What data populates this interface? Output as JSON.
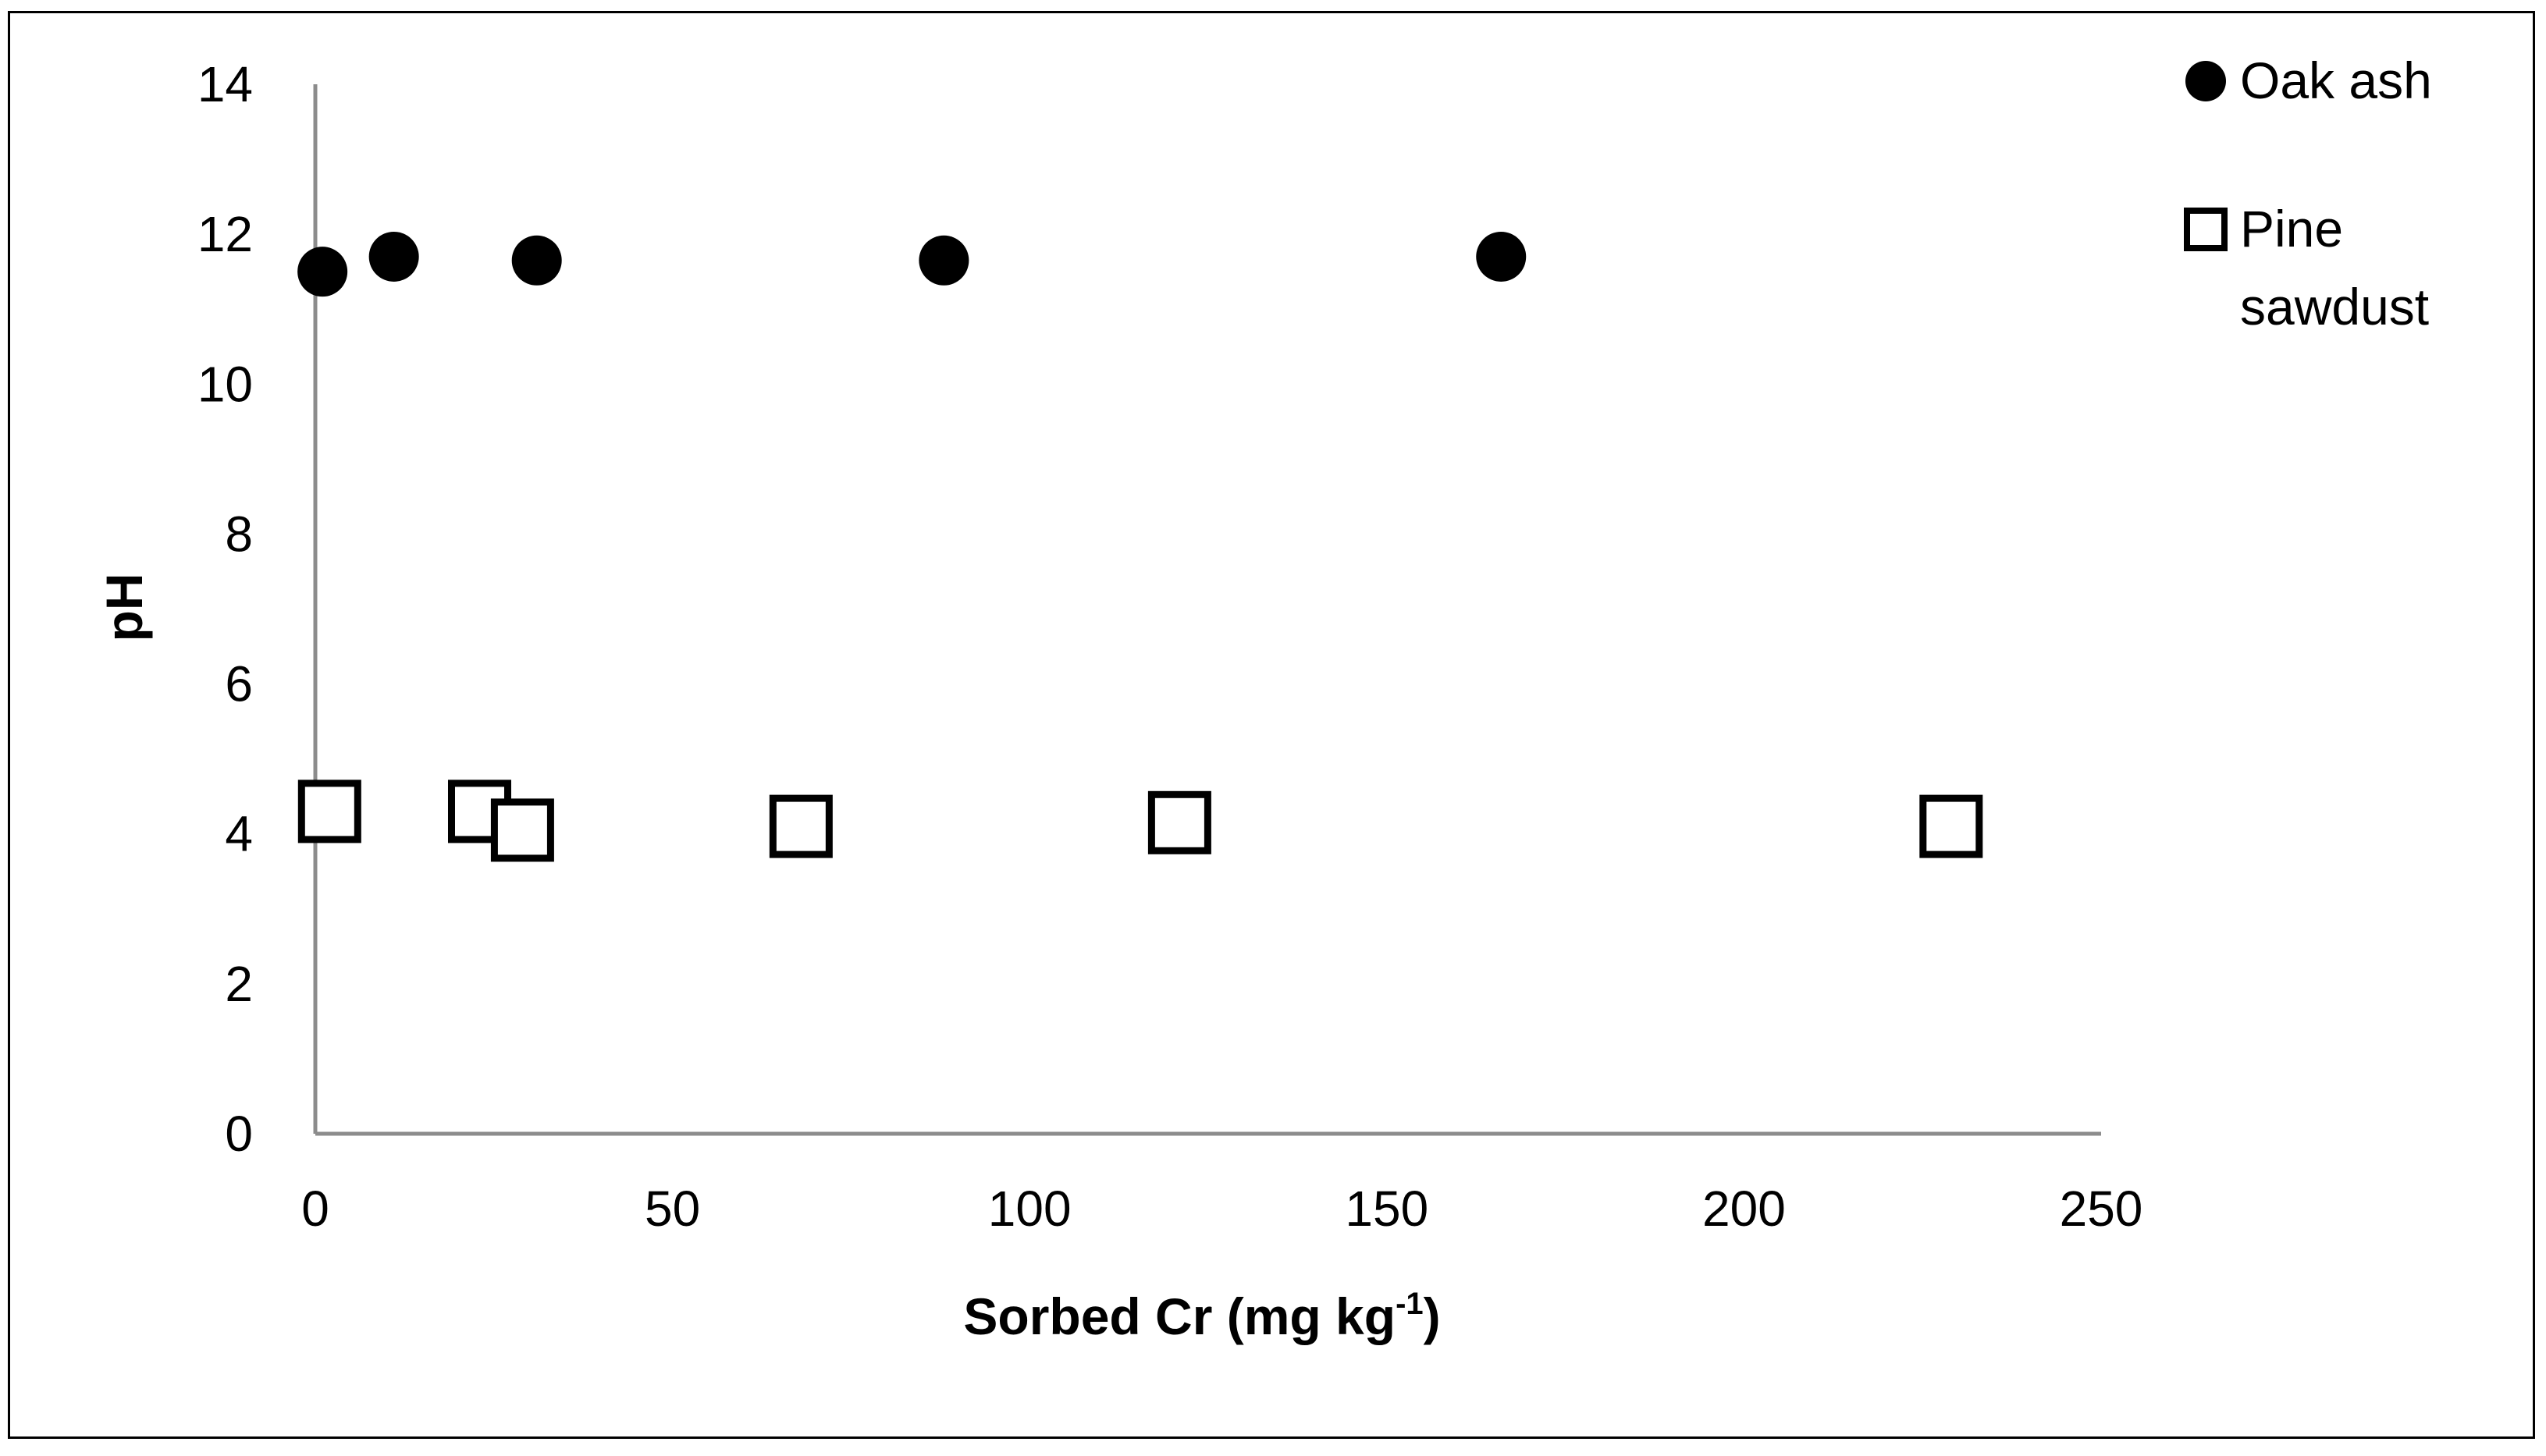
{
  "chart_data": {
    "type": "scatter",
    "xlabel": "Sorbed Cr (mg kg",
    "xlabel_sup": "-1",
    "xlabel_close": ")",
    "ylabel": "pH",
    "xlim": [
      0,
      250
    ],
    "ylim": [
      0,
      14
    ],
    "x_ticks": [
      0,
      50,
      100,
      150,
      200,
      250
    ],
    "y_ticks": [
      0,
      2,
      4,
      6,
      8,
      10,
      12,
      14
    ],
    "grid": false,
    "legend_position": "top-right",
    "series": [
      {
        "name": "Oak ash",
        "legend_lines": [
          "Oak ash"
        ],
        "marker": "filled-circle",
        "color": "#000000",
        "points": [
          {
            "x": 1,
            "y": 11.5
          },
          {
            "x": 11,
            "y": 11.7
          },
          {
            "x": 31,
            "y": 11.65
          },
          {
            "x": 88,
            "y": 11.65
          },
          {
            "x": 166,
            "y": 11.7
          }
        ]
      },
      {
        "name": "Pine sawdust",
        "legend_lines": [
          "Pine",
          "sawdust"
        ],
        "marker": "open-square",
        "color": "#000000",
        "points": [
          {
            "x": 2,
            "y": 4.3
          },
          {
            "x": 23,
            "y": 4.3
          },
          {
            "x": 29,
            "y": 4.05
          },
          {
            "x": 68,
            "y": 4.1
          },
          {
            "x": 121,
            "y": 4.15
          },
          {
            "x": 229,
            "y": 4.1
          }
        ]
      }
    ]
  }
}
